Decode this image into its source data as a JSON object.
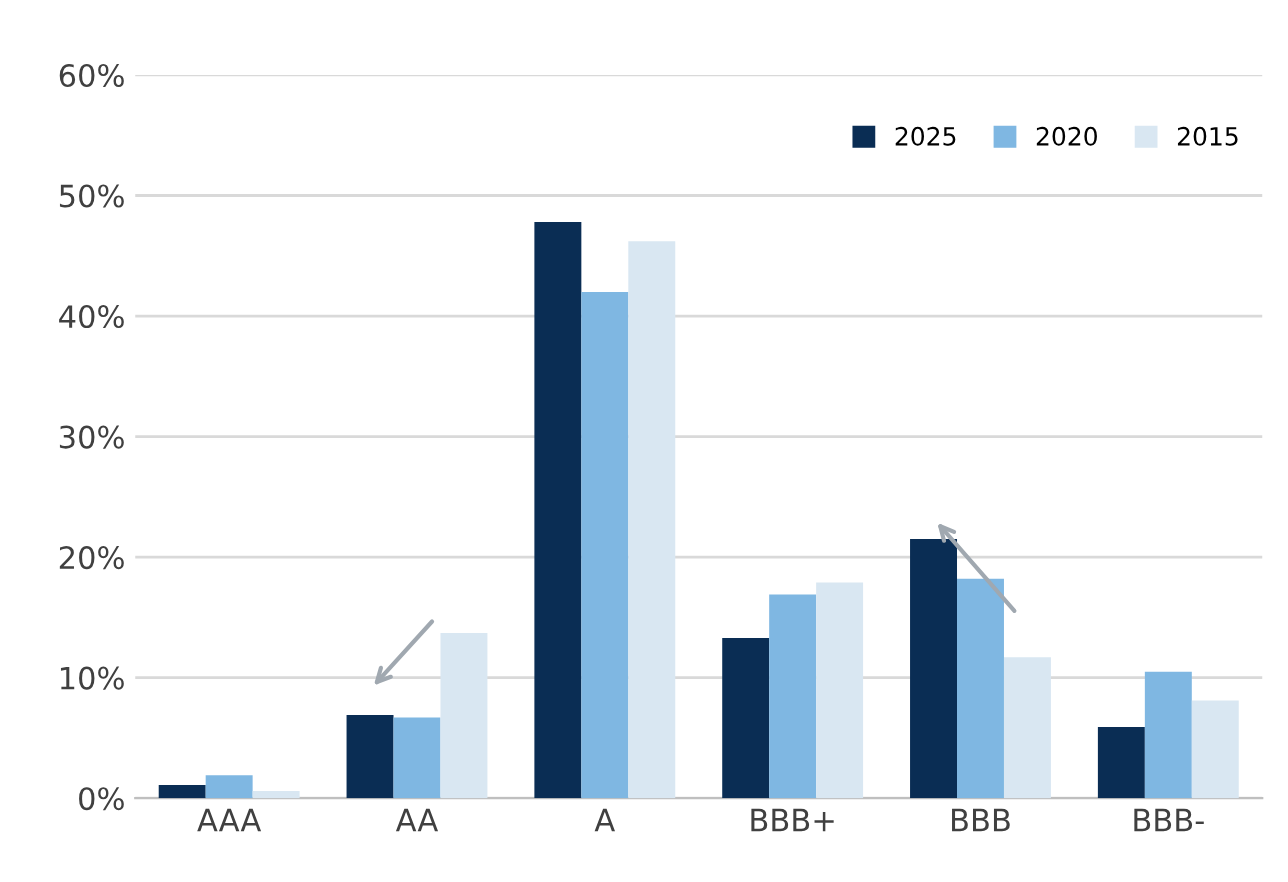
{
  "chart_data": {
    "type": "bar",
    "categories": [
      "AAA",
      "AA",
      "A",
      "BBB+",
      "BBB",
      "BBB-"
    ],
    "series": [
      {
        "name": "2025",
        "color": "#0a2d54",
        "values": [
          1.1,
          6.9,
          47.8,
          13.3,
          21.5,
          5.9
        ]
      },
      {
        "name": "2020",
        "color": "#7fb7e2",
        "values": [
          1.9,
          6.7,
          42.0,
          16.9,
          18.2,
          10.5
        ]
      },
      {
        "name": "2015",
        "color": "#d9e7f2",
        "values": [
          0.6,
          13.7,
          46.2,
          17.9,
          11.7,
          8.1
        ]
      }
    ],
    "ylim": [
      0,
      60
    ],
    "yticks": [
      {
        "value": 0,
        "label": "0%"
      },
      {
        "value": 10,
        "label": "10%"
      },
      {
        "value": 20,
        "label": "20%"
      },
      {
        "value": 30,
        "label": "30%"
      },
      {
        "value": 40,
        "label": "40%"
      },
      {
        "value": 50,
        "label": "50%"
      },
      {
        "value": 60,
        "label": "60%"
      }
    ],
    "grid": "y",
    "legend": "top right"
  }
}
